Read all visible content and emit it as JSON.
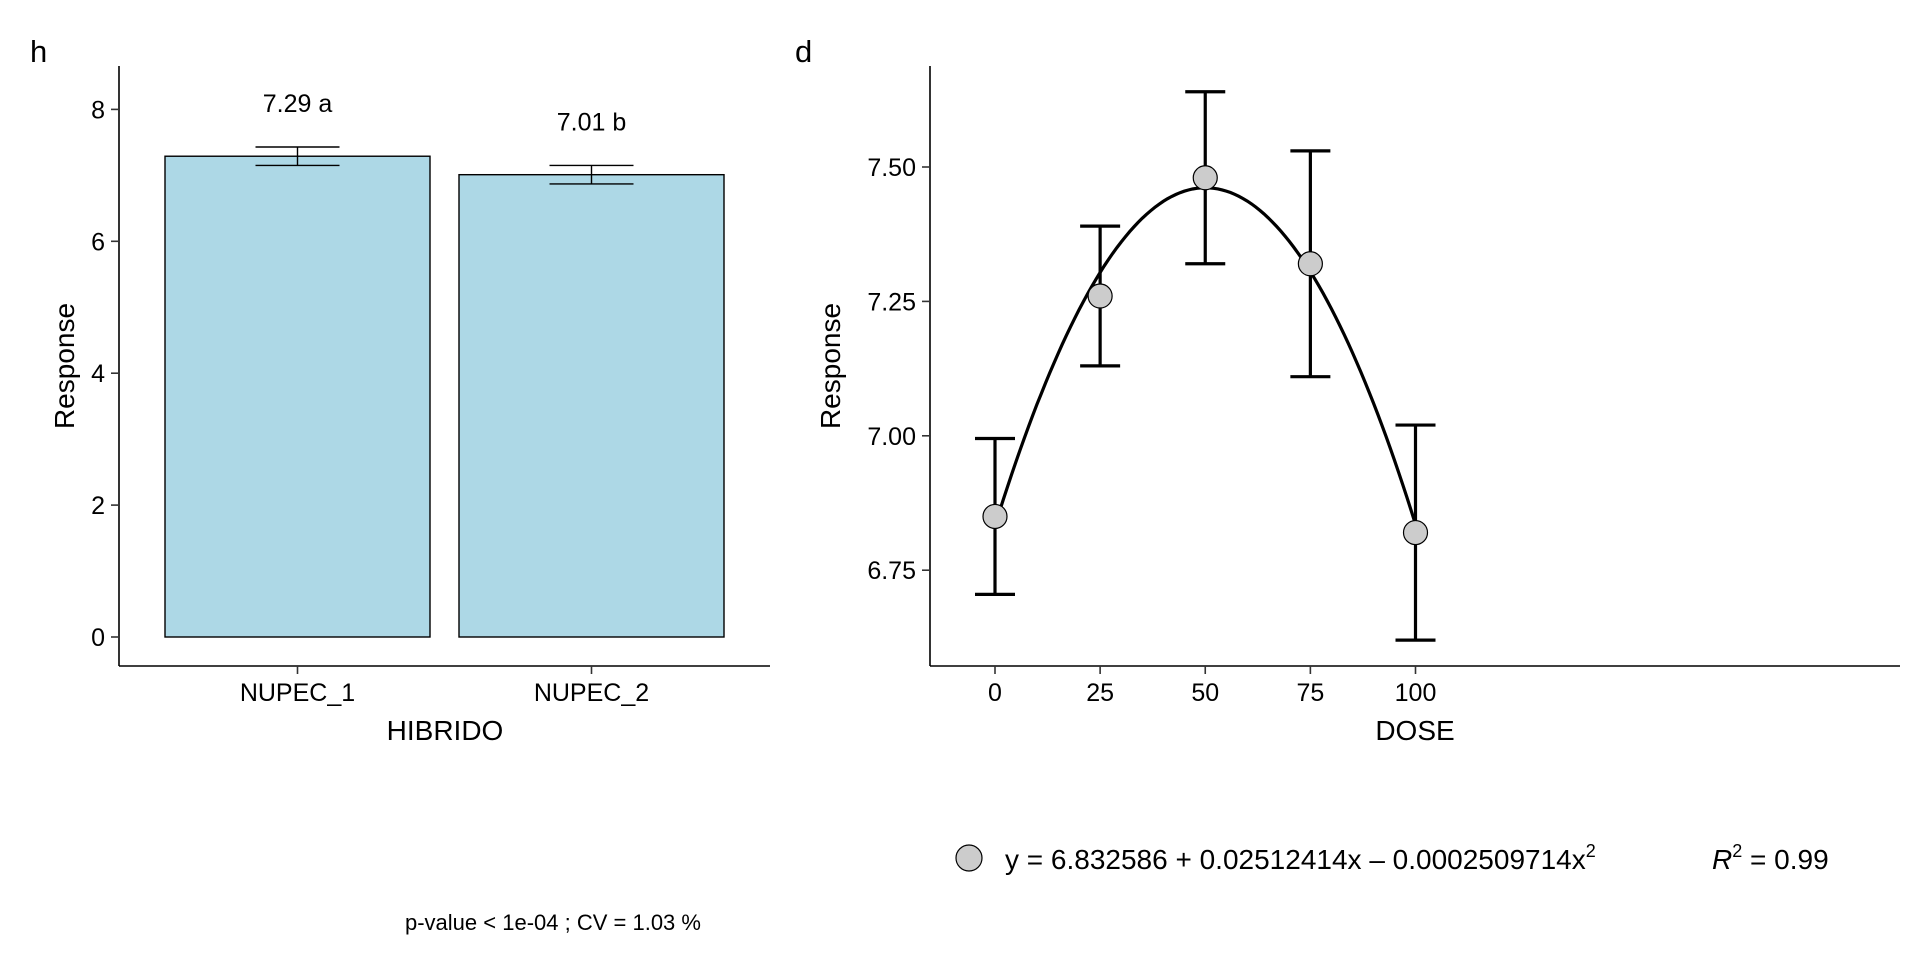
{
  "footer": {
    "note": "p-value  < 1e-04 ; CV =  1.03 %"
  },
  "chart_data": [
    {
      "type": "bar",
      "panel_label": "h",
      "xlabel": "HIBRIDO",
      "ylabel": "Response",
      "categories": [
        "NUPEC_1",
        "NUPEC_2"
      ],
      "values": [
        7.29,
        7.01
      ],
      "errors": [
        0.28,
        0.28
      ],
      "labels": [
        "7.29 a",
        "7.01 b"
      ],
      "ylim": [
        0,
        8.5
      ],
      "yticks": [
        0,
        2,
        4,
        6,
        8
      ],
      "bar_color": "#add8e6",
      "grid": false
    },
    {
      "type": "scatter",
      "panel_label": "d",
      "xlabel": "DOSE",
      "ylabel": "Response",
      "x": [
        0,
        25,
        50,
        75,
        100
      ],
      "y": [
        6.85,
        7.26,
        7.48,
        7.32,
        6.82
      ],
      "err_low": [
        6.705,
        7.13,
        7.32,
        7.11,
        6.62
      ],
      "err_high": [
        6.995,
        7.39,
        7.64,
        7.53,
        7.02
      ],
      "xticks": [
        0,
        25,
        50,
        75,
        100
      ],
      "yticks": [
        6.75,
        7.0,
        7.25,
        7.5
      ],
      "ytick_labels": [
        "6.75",
        "7.00",
        "7.25",
        "7.50"
      ],
      "xlim": [
        -4,
        104
      ],
      "ylim": [
        6.62,
        7.68
      ],
      "fit": {
        "c0": 6.832586,
        "c1": 0.02512414,
        "c2": -0.0002509714
      },
      "point_color": "#cccccc",
      "grid": false,
      "legend": {
        "position": "bottom",
        "eq_prefix": "y = 6.832586 + 0.02512414x – 0.0002509714x",
        "eq_sup": "2",
        "r2_sym": "R",
        "r2_sup": "2",
        "r2_rest": " = 0.99"
      }
    }
  ]
}
